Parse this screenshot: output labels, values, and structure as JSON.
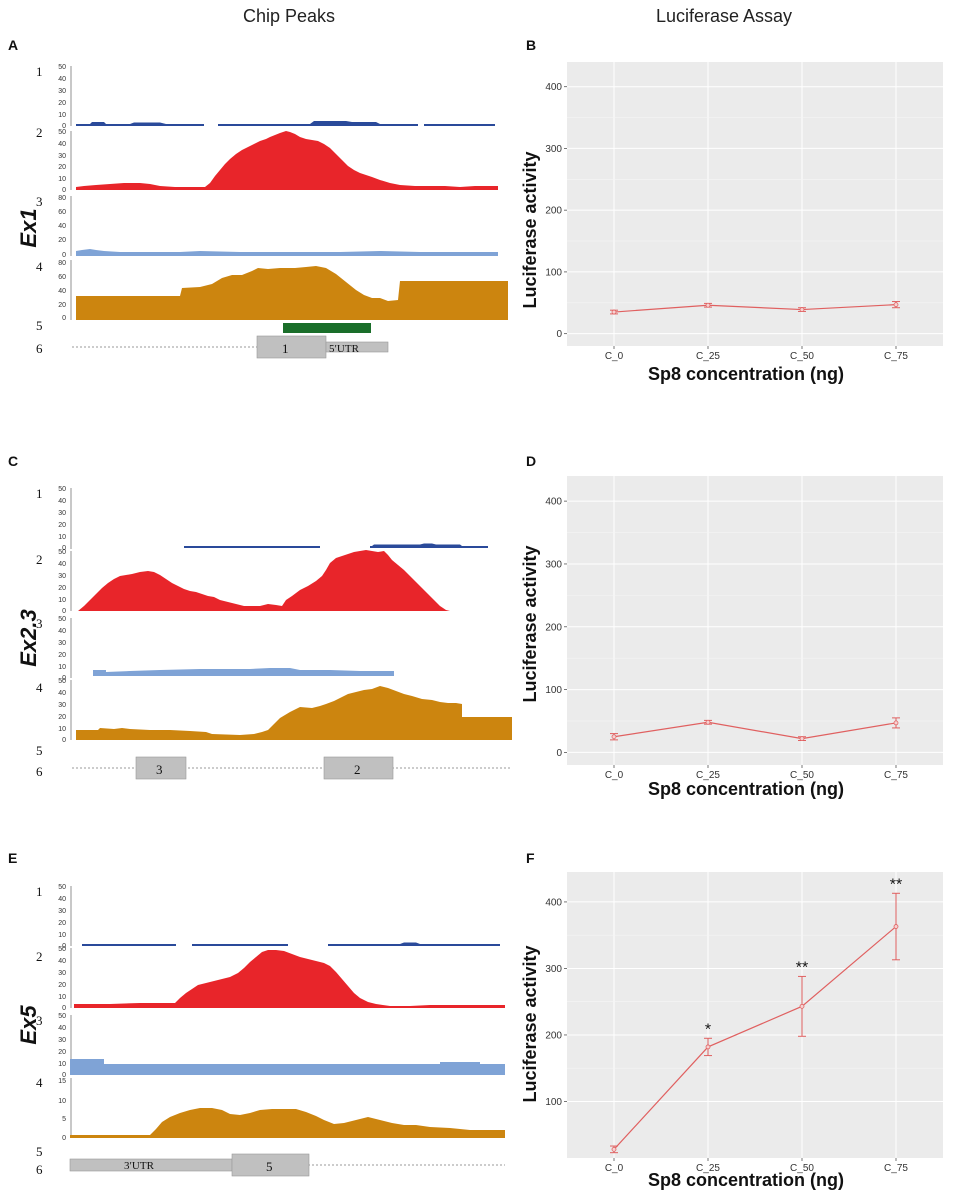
{
  "headers": {
    "left": "Chip Peaks",
    "right": "Luciferase Assay"
  },
  "colors": {
    "track1": "#2a4a9a",
    "track2": "#e8252a",
    "track3": "#7fa3d6",
    "track4": "#cc850f",
    "peak_bar": "#1a6e2a",
    "gene_box": "#c0c0c0",
    "chart_bg": "#ebebeb",
    "line": "#e06060"
  },
  "track_numbers": [
    "1",
    "2",
    "3",
    "4",
    "5",
    "6"
  ],
  "tick_sets": {
    "a50": [
      "50",
      "40",
      "30",
      "20",
      "10",
      "0"
    ],
    "a80": [
      "80",
      "60",
      "40",
      "20",
      "0"
    ],
    "a50b": [
      "50",
      "40",
      "30",
      "20",
      "10",
      "0"
    ],
    "a15": [
      "15",
      "10",
      "5",
      "0"
    ]
  },
  "chip_panels": [
    {
      "letter": "A",
      "region": "Ex1",
      "exons": [
        {
          "label": "1"
        }
      ],
      "utrs": [
        {
          "label": "5′UTR"
        }
      ]
    },
    {
      "letter": "C",
      "region": "Ex2.3",
      "exons": [
        {
          "label": "3"
        },
        {
          "label": "2"
        }
      ],
      "utrs": []
    },
    {
      "letter": "E",
      "region": "Ex5",
      "exons": [
        {
          "label": "5"
        }
      ],
      "utrs": [
        {
          "label": "3′UTR"
        }
      ]
    }
  ],
  "chart_data": [
    {
      "panel": "B",
      "type": "line",
      "categories": [
        "C_0",
        "C_25",
        "C_50",
        "C_75"
      ],
      "values": [
        35,
        46,
        39,
        47
      ],
      "errors": [
        3,
        3,
        3,
        5
      ],
      "significance": [
        "",
        "",
        "",
        ""
      ],
      "xlabel": "Sp8 concentration (ng)",
      "ylabel": "Luciferase activity",
      "yticks": [
        "0",
        "100",
        "200",
        "300",
        "400"
      ],
      "ylim": [
        -20,
        440
      ]
    },
    {
      "panel": "D",
      "type": "line",
      "categories": [
        "C_0",
        "C_25",
        "C_50",
        "C_75"
      ],
      "values": [
        25,
        48,
        22,
        47
      ],
      "errors": [
        5,
        3,
        3,
        8
      ],
      "significance": [
        "",
        "",
        "",
        ""
      ],
      "xlabel": "Sp8 concentration (ng)",
      "ylabel": "Luciferase activity",
      "yticks": [
        "0",
        "100",
        "200",
        "300",
        "400"
      ],
      "ylim": [
        -20,
        440
      ]
    },
    {
      "panel": "F",
      "type": "line",
      "categories": [
        "C_0",
        "C_25",
        "C_50",
        "C_75"
      ],
      "values": [
        28,
        182,
        243,
        363
      ],
      "errors": [
        5,
        13,
        45,
        50
      ],
      "significance": [
        "",
        "*",
        "**",
        "**"
      ],
      "xlabel": "Sp8 concentration (ng)",
      "ylabel": "Luciferase activity",
      "yticks": [
        "100",
        "200",
        "300",
        "400"
      ],
      "ylim": [
        15,
        445
      ]
    }
  ]
}
